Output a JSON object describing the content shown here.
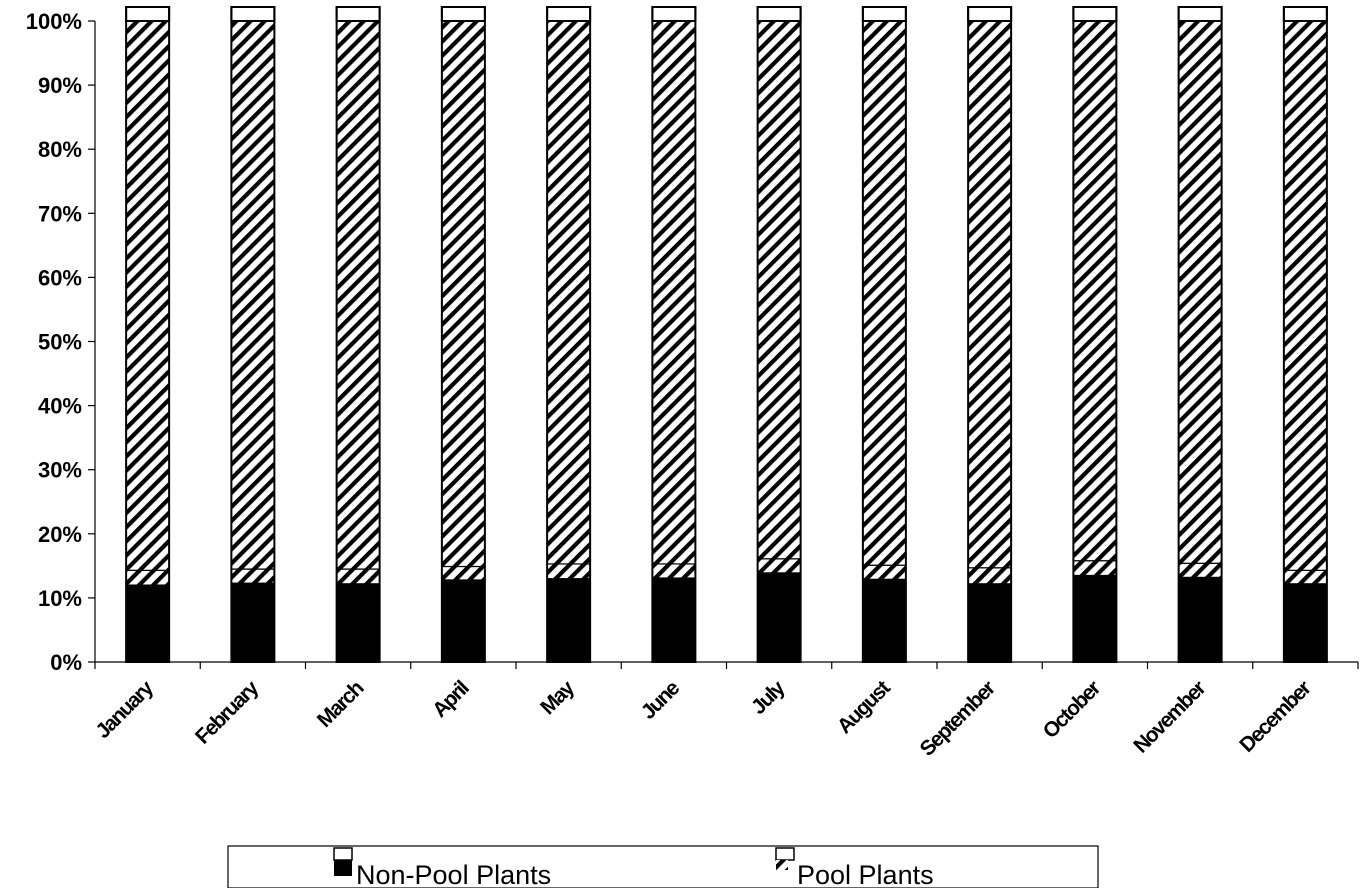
{
  "chart_data": {
    "type": "bar",
    "stacked": true,
    "percent_stacked": true,
    "categories": [
      "January",
      "February",
      "March",
      "April",
      "May",
      "June",
      "July",
      "August",
      "September",
      "October",
      "November",
      "December"
    ],
    "series": [
      {
        "name": "Non-Pool Plants",
        "values": [
          12.0,
          12.3,
          12.2,
          12.8,
          13.0,
          13.1,
          13.9,
          12.9,
          12.2,
          13.5,
          13.2,
          12.2
        ],
        "fill": "solid"
      },
      {
        "name": "Pool Plants",
        "values": [
          2.3,
          2.2,
          2.3,
          2.1,
          2.3,
          2.2,
          2.2,
          2.2,
          2.5,
          2.3,
          2.2,
          2.1
        ],
        "fill": "diagonal-hatch"
      },
      {
        "name": "",
        "values": [
          85.7,
          85.5,
          85.5,
          85.1,
          84.7,
          84.7,
          83.9,
          84.9,
          85.3,
          84.2,
          84.6,
          85.7
        ],
        "fill": "diagonal-hatch"
      }
    ],
    "y_ticks": [
      "0%",
      "10%",
      "20%",
      "30%",
      "40%",
      "50%",
      "60%",
      "70%",
      "80%",
      "90%",
      "100%"
    ],
    "ylim": [
      0,
      100
    ],
    "grid": false,
    "legend_position": "bottom",
    "colors": {
      "solid": "#000000",
      "hatch": "#000000",
      "background": "#ffffff"
    }
  },
  "legend": {
    "items": [
      {
        "label": "Non-Pool Plants",
        "icon": "solid-square-icon"
      },
      {
        "label": "Pool Plants",
        "icon": "hatched-square-icon"
      }
    ]
  }
}
